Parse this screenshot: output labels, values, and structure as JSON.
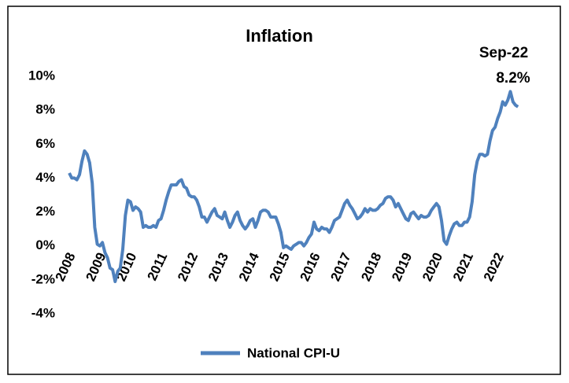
{
  "chart_data": {
    "type": "line",
    "title": "Inflation",
    "categories": [
      "2008",
      null,
      null,
      null,
      null,
      null,
      null,
      null,
      null,
      null,
      null,
      null,
      "2009",
      null,
      null,
      null,
      null,
      null,
      null,
      null,
      null,
      null,
      null,
      null,
      "2010",
      null,
      null,
      null,
      null,
      null,
      null,
      null,
      null,
      null,
      null,
      null,
      "2011",
      null,
      null,
      null,
      null,
      null,
      null,
      null,
      null,
      null,
      null,
      null,
      "2012",
      null,
      null,
      null,
      null,
      null,
      null,
      null,
      null,
      null,
      null,
      null,
      "2013",
      null,
      null,
      null,
      null,
      null,
      null,
      null,
      null,
      null,
      null,
      null,
      "2014",
      null,
      null,
      null,
      null,
      null,
      null,
      null,
      null,
      null,
      null,
      null,
      "2015",
      null,
      null,
      null,
      null,
      null,
      null,
      null,
      null,
      null,
      null,
      null,
      "2016",
      null,
      null,
      null,
      null,
      null,
      null,
      null,
      null,
      null,
      null,
      null,
      "2017",
      null,
      null,
      null,
      null,
      null,
      null,
      null,
      null,
      null,
      null,
      null,
      "2018",
      null,
      null,
      null,
      null,
      null,
      null,
      null,
      null,
      null,
      null,
      null,
      "2019",
      null,
      null,
      null,
      null,
      null,
      null,
      null,
      null,
      null,
      null,
      null,
      "2020",
      null,
      null,
      null,
      null,
      null,
      null,
      null,
      null,
      null,
      null,
      null,
      "2021",
      null,
      null,
      null,
      null,
      null,
      null,
      null,
      null,
      null,
      null,
      null,
      "2022",
      null,
      null,
      null,
      null,
      null,
      null,
      null,
      null
    ],
    "series": [
      {
        "name": "National CPI-U",
        "color": "#4f81bd",
        "values": [
          4.3,
          4.0,
          4.0,
          3.9,
          4.2,
          5.0,
          5.6,
          5.4,
          4.9,
          3.7,
          1.1,
          0.1,
          0.0,
          0.2,
          -0.4,
          -0.7,
          -1.3,
          -1.4,
          -2.1,
          -1.5,
          -1.3,
          -0.2,
          1.8,
          2.7,
          2.6,
          2.1,
          2.3,
          2.2,
          2.0,
          1.1,
          1.2,
          1.1,
          1.1,
          1.2,
          1.1,
          1.5,
          1.6,
          2.1,
          2.7,
          3.2,
          3.6,
          3.6,
          3.6,
          3.8,
          3.9,
          3.5,
          3.4,
          3.0,
          2.9,
          2.9,
          2.7,
          2.3,
          1.7,
          1.7,
          1.4,
          1.7,
          2.0,
          2.2,
          1.8,
          1.7,
          1.6,
          2.0,
          1.5,
          1.1,
          1.4,
          1.8,
          2.0,
          1.5,
          1.2,
          1.0,
          1.2,
          1.5,
          1.6,
          1.1,
          1.5,
          2.0,
          2.1,
          2.1,
          2.0,
          1.7,
          1.7,
          1.7,
          1.3,
          0.8,
          -0.1,
          0.0,
          -0.1,
          -0.2,
          0.0,
          0.1,
          0.2,
          0.2,
          0.0,
          0.2,
          0.5,
          0.7,
          1.4,
          1.0,
          0.9,
          1.1,
          1.0,
          1.0,
          0.8,
          1.1,
          1.5,
          1.6,
          1.7,
          2.1,
          2.5,
          2.7,
          2.4,
          2.2,
          1.9,
          1.6,
          1.7,
          1.9,
          2.2,
          2.0,
          2.2,
          2.1,
          2.1,
          2.2,
          2.4,
          2.5,
          2.8,
          2.9,
          2.9,
          2.7,
          2.3,
          2.5,
          2.2,
          1.9,
          1.6,
          1.5,
          1.9,
          2.0,
          1.8,
          1.6,
          1.8,
          1.7,
          1.7,
          1.8,
          2.1,
          2.3,
          2.5,
          2.3,
          1.5,
          0.3,
          0.1,
          0.6,
          1.0,
          1.3,
          1.4,
          1.2,
          1.2,
          1.4,
          1.4,
          1.7,
          2.6,
          4.2,
          5.0,
          5.4,
          5.4,
          5.3,
          5.4,
          6.2,
          6.8,
          7.0,
          7.5,
          7.9,
          8.5,
          8.3,
          8.6,
          9.1,
          8.5,
          8.3,
          8.2
        ]
      }
    ],
    "ylim": [
      -4,
      10
    ],
    "yticks": [
      {
        "value": -4,
        "label": "-4%"
      },
      {
        "value": -2,
        "label": "-2%"
      },
      {
        "value": 0,
        "label": "0%"
      },
      {
        "value": 2,
        "label": "2%"
      },
      {
        "value": 4,
        "label": "4%"
      },
      {
        "value": 6,
        "label": "6%"
      },
      {
        "value": 8,
        "label": "8%"
      },
      {
        "value": 10,
        "label": "10%"
      }
    ],
    "annotations": [
      {
        "text": "Sep-22"
      },
      {
        "text": "8.2%"
      }
    ],
    "legend": "bottom"
  }
}
